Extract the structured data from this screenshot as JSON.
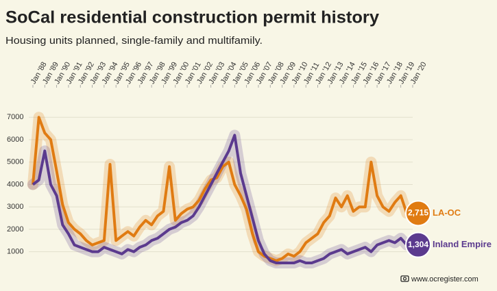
{
  "chart_data": {
    "type": "line",
    "title": "SoCal residential construction permit history",
    "subtitle": "Housing units planned, single-family and multifamily.",
    "source": "www.ocregister.com",
    "x": [
      1988,
      1988.5,
      1989,
      1989.5,
      1990,
      1990.5,
      1991,
      1991.5,
      1992,
      1992.5,
      1993,
      1993.5,
      1994,
      1994.5,
      1995,
      1995.5,
      1996,
      1996.5,
      1997,
      1997.5,
      1998,
      1998.5,
      1999,
      1999.5,
      2000,
      2000.5,
      2001,
      2001.5,
      2002,
      2002.5,
      2003,
      2003.5,
      2004,
      2004.5,
      2005,
      2005.5,
      2006,
      2006.5,
      2007,
      2007.5,
      2008,
      2008.5,
      2009,
      2009.5,
      2010,
      2010.5,
      2011,
      2011.5,
      2012,
      2012.5,
      2013,
      2013.5,
      2014,
      2014.5,
      2015,
      2015.5,
      2016,
      2016.5,
      2017,
      2017.5,
      2018,
      2018.5,
      2019,
      2019.5
    ],
    "series": [
      {
        "name": "LA-OC",
        "color": "#e07b12",
        "values": [
          4000,
          7000,
          6300,
          6000,
          4600,
          3100,
          2300,
          2000,
          1800,
          1500,
          1300,
          1400,
          1500,
          4900,
          1500,
          1700,
          1900,
          1700,
          2100,
          2400,
          2200,
          2600,
          2800,
          4800,
          2400,
          2700,
          2900,
          3000,
          3300,
          3800,
          4200,
          4300,
          4800,
          5000,
          4000,
          3500,
          2900,
          1800,
          1000,
          800,
          700,
          600,
          700,
          900,
          800,
          1000,
          1400,
          1600,
          1800,
          2300,
          2600,
          3400,
          3000,
          3500,
          2800,
          3000,
          3000,
          5000,
          3500,
          3000,
          2800,
          3200,
          3500,
          2715
        ],
        "value_labels": [
          null,
          null,
          null,
          null,
          null,
          null,
          null,
          null,
          null,
          null,
          null,
          null,
          null,
          null,
          null,
          null,
          null,
          null,
          null,
          null,
          null,
          null,
          null,
          null,
          null,
          null,
          null,
          null,
          null,
          null,
          null,
          null,
          null,
          null,
          null,
          null,
          null,
          null,
          null,
          null,
          null,
          null,
          null,
          null,
          null,
          null,
          null,
          null,
          null,
          null,
          null,
          null,
          null,
          null,
          null,
          null,
          null,
          null,
          null,
          null,
          null,
          null,
          null,
          "2,715"
        ]
      },
      {
        "name": "Inland Empire",
        "color": "#5b3a8e",
        "values": [
          4000,
          4200,
          5500,
          4000,
          3500,
          2200,
          1800,
          1300,
          1200,
          1100,
          1000,
          1000,
          1200,
          1100,
          1000,
          900,
          1100,
          1000,
          1200,
          1300,
          1500,
          1600,
          1800,
          2000,
          2100,
          2300,
          2400,
          2600,
          3000,
          3500,
          4000,
          4500,
          5000,
          5500,
          6200,
          4500,
          3500,
          2500,
          1500,
          900,
          600,
          500,
          500,
          500,
          500,
          600,
          500,
          500,
          600,
          700,
          900,
          1000,
          1100,
          900,
          1000,
          1100,
          1200,
          1000,
          1300,
          1400,
          1500,
          1400,
          1600,
          1304
        ],
        "value_labels": [
          null,
          null,
          null,
          null,
          null,
          null,
          null,
          null,
          null,
          null,
          null,
          null,
          null,
          null,
          null,
          null,
          null,
          null,
          null,
          null,
          null,
          null,
          null,
          null,
          null,
          null,
          null,
          null,
          null,
          null,
          null,
          null,
          null,
          null,
          null,
          null,
          null,
          null,
          null,
          null,
          null,
          null,
          null,
          null,
          null,
          null,
          null,
          null,
          null,
          null,
          null,
          null,
          null,
          null,
          null,
          null,
          null,
          null,
          null,
          null,
          null,
          null,
          null,
          "1,304"
        ]
      }
    ],
    "xlim": [
      1988,
      2020
    ],
    "xticks": [
      {
        "value": 1988,
        "label": "Jan '88"
      },
      {
        "value": 1989,
        "label": "Jan '89"
      },
      {
        "value": 1990,
        "label": "Jan '90"
      },
      {
        "value": 1991,
        "label": "Jan '91"
      },
      {
        "value": 1992,
        "label": "Jan '92"
      },
      {
        "value": 1993,
        "label": "Jan '93"
      },
      {
        "value": 1994,
        "label": "Jan '94"
      },
      {
        "value": 1995,
        "label": "Jan '95"
      },
      {
        "value": 1996,
        "label": "Jan '96"
      },
      {
        "value": 1997,
        "label": "Jan '97"
      },
      {
        "value": 1998,
        "label": "Jan '98"
      },
      {
        "value": 1999,
        "label": "Jan '99"
      },
      {
        "value": 2000,
        "label": "Jan '00"
      },
      {
        "value": 2001,
        "label": "Jan '01"
      },
      {
        "value": 2002,
        "label": "Jan '02"
      },
      {
        "value": 2003,
        "label": "Jan '03"
      },
      {
        "value": 2004,
        "label": "Jan '04"
      },
      {
        "value": 2005,
        "label": "Jan '05"
      },
      {
        "value": 2006,
        "label": "Jan '06"
      },
      {
        "value": 2007,
        "label": "Jan '07"
      },
      {
        "value": 2008,
        "label": "Jan '08"
      },
      {
        "value": 2009,
        "label": "Jan '09"
      },
      {
        "value": 2010,
        "label": "Jan '10"
      },
      {
        "value": 2011,
        "label": "Jan '11"
      },
      {
        "value": 2012,
        "label": "Jan '12"
      },
      {
        "value": 2013,
        "label": "Jan '13"
      },
      {
        "value": 2014,
        "label": "Jan '14"
      },
      {
        "value": 2015,
        "label": "Jan '15"
      },
      {
        "value": 2016,
        "label": "Jan '16"
      },
      {
        "value": 2017,
        "label": "Jan '17"
      },
      {
        "value": 2018,
        "label": "Jan '18"
      },
      {
        "value": 2019,
        "label": "Jan '19"
      },
      {
        "value": 2020,
        "label": "Jan '20"
      }
    ],
    "ylim": [
      500,
      8200
    ],
    "yticks": [
      1000,
      2000,
      3000,
      4000,
      5000,
      6000,
      7000
    ],
    "grid": true
  }
}
